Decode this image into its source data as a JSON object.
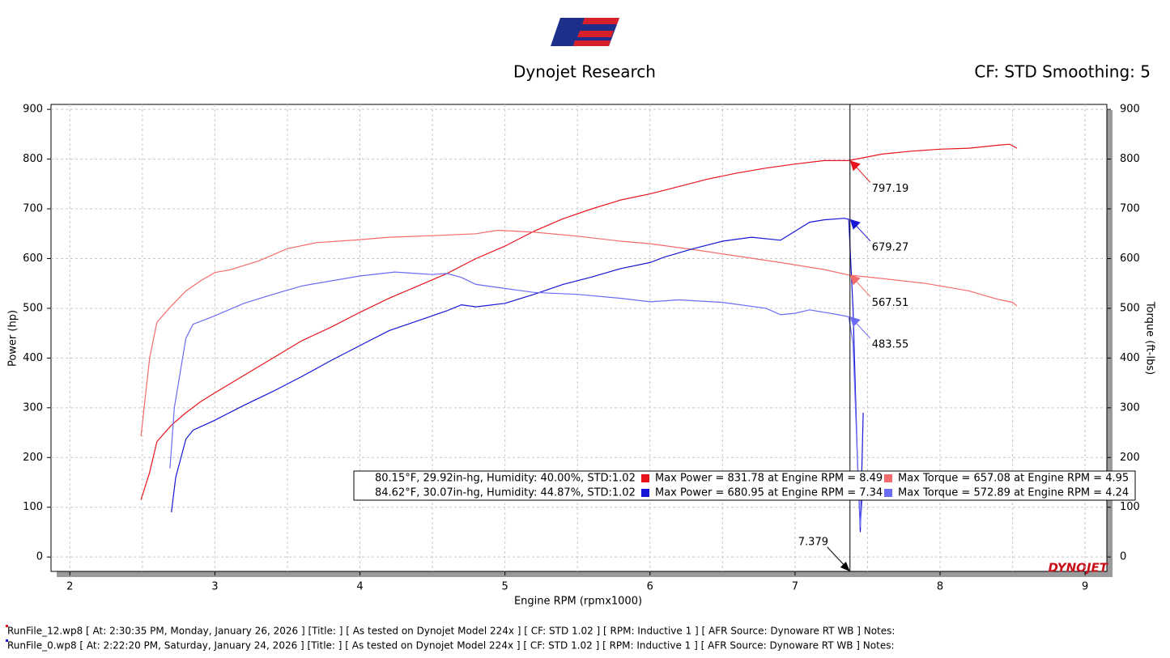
{
  "chart_data": {
    "type": "line",
    "title": "Dynojet Research",
    "subtitle": "CF: STD Smoothing: 5",
    "x_label": "Engine RPM (rpmx1000)",
    "y_label": "Power (hp)",
    "y2_label": "Torque (ft-lbs)",
    "brand": "DYNOJET",
    "xlim": [
      1.87,
      9.15
    ],
    "ylim": [
      -29,
      910
    ],
    "y2lim": [
      -29,
      910
    ],
    "xticks": [
      2,
      3,
      4,
      5,
      6,
      7,
      8,
      9
    ],
    "x_minor_ticks": [
      2.5,
      3.5,
      4.5,
      5.5,
      6.5,
      7.5,
      8.5
    ],
    "yticks": [
      0,
      100,
      200,
      300,
      400,
      500,
      600,
      700,
      800,
      900
    ],
    "y2ticks": [
      0,
      100,
      200,
      300,
      400,
      500,
      600,
      700,
      800,
      900
    ],
    "grid": true,
    "series": [
      {
        "name": "RunFile_12 Power",
        "color": "#e8141b",
        "x": [
          2.49,
          2.55,
          2.6,
          2.7,
          2.8,
          2.9,
          3.0,
          3.2,
          3.4,
          3.6,
          3.8,
          4.0,
          4.2,
          4.4,
          4.6,
          4.8,
          5.0,
          5.2,
          5.4,
          5.6,
          5.8,
          6.0,
          6.2,
          6.4,
          6.6,
          6.8,
          7.0,
          7.2,
          7.37,
          7.6,
          7.8,
          8.0,
          8.2,
          8.4,
          8.48,
          8.53
        ],
        "values": [
          115,
          170,
          232,
          265,
          290,
          312,
          330,
          365,
          400,
          435,
          462,
          492,
          520,
          545,
          570,
          600,
          625,
          655,
          680,
          700,
          718,
          730,
          745,
          760,
          772,
          782,
          790,
          797,
          797,
          810,
          816,
          820,
          822,
          828,
          830,
          822
        ]
      },
      {
        "name": "RunFile_12 Torque",
        "color": "#f46b6b",
        "axis": "y2",
        "x": [
          2.49,
          2.55,
          2.6,
          2.7,
          2.8,
          2.9,
          3.0,
          3.1,
          3.3,
          3.5,
          3.7,
          4.0,
          4.2,
          4.5,
          4.8,
          4.95,
          5.2,
          5.5,
          5.8,
          6.0,
          6.3,
          6.6,
          6.9,
          7.2,
          7.37,
          7.6,
          7.9,
          8.2,
          8.4,
          8.5,
          8.53
        ],
        "values": [
          243,
          400,
          472,
          505,
          535,
          555,
          572,
          577,
          595,
          620,
          632,
          638,
          643,
          646,
          650,
          657,
          653,
          645,
          635,
          630,
          618,
          605,
          592,
          578,
          567,
          560,
          550,
          535,
          518,
          512,
          505
        ]
      },
      {
        "name": "RunFile_0 Power",
        "color": "#1616d6",
        "x": [
          2.7,
          2.73,
          2.8,
          2.85,
          3.0,
          3.2,
          3.4,
          3.6,
          3.8,
          4.0,
          4.2,
          4.4,
          4.6,
          4.7,
          4.8,
          5.0,
          5.2,
          5.4,
          5.6,
          5.8,
          6.0,
          6.1,
          6.3,
          6.5,
          6.7,
          6.9,
          7.0,
          7.1,
          7.2,
          7.34,
          7.37,
          7.4,
          7.43,
          7.45,
          7.47
        ],
        "values": [
          90,
          160,
          237,
          255,
          275,
          305,
          333,
          363,
          395,
          425,
          455,
          475,
          495,
          507,
          503,
          510,
          528,
          548,
          563,
          580,
          592,
          603,
          620,
          635,
          643,
          637,
          655,
          673,
          678,
          681,
          679,
          500,
          200,
          50,
          290
        ]
      },
      {
        "name": "RunFile_0 Torque",
        "color": "#6b6bf4",
        "axis": "y2",
        "x": [
          2.69,
          2.72,
          2.8,
          2.85,
          3.0,
          3.2,
          3.4,
          3.6,
          3.8,
          4.0,
          4.24,
          4.5,
          4.6,
          4.7,
          4.8,
          5.0,
          5.2,
          5.5,
          5.8,
          6.0,
          6.2,
          6.5,
          6.8,
          6.9,
          7.0,
          7.1,
          7.3,
          7.37,
          7.4,
          7.43,
          7.45,
          7.47
        ],
        "values": [
          178,
          300,
          440,
          468,
          485,
          510,
          528,
          545,
          555,
          565,
          573,
          568,
          570,
          562,
          548,
          540,
          532,
          528,
          520,
          513,
          517,
          512,
          500,
          487,
          490,
          497,
          487,
          483,
          430,
          200,
          60,
          150
        ]
      }
    ],
    "cursor_x": 7.379,
    "annotations": [
      {
        "value": 797.19,
        "color": "#e8141b"
      },
      {
        "value": 679.27,
        "color": "#1616d6"
      },
      {
        "value": 567.51,
        "color": "#f46b6b"
      },
      {
        "value": 483.55,
        "color": "#6b6bf4"
      }
    ],
    "legend_rows": [
      {
        "conditions": "80.15°F, 29.92in-hg, Humidity: 40.00%, STD:1.02",
        "power": "Max Power = 831.78 at Engine RPM = 8.49",
        "torque": "Max Torque = 657.08 at Engine RPM = 4.95"
      },
      {
        "conditions": "84.62°F, 30.07in-hg, Humidity: 44.87%, STD:1.02",
        "power": "Max Power = 680.95 at Engine RPM = 7.34",
        "torque": "Max Torque = 572.89 at Engine RPM = 4.24"
      }
    ],
    "footer": [
      "RunFile_12.wp8 [ At: 2:30:35 PM, Monday, January 26, 2026 ] [Title: ]  [ As tested on Dynojet Model 224x ] [ CF: STD 1.02 ] [ RPM: Inductive 1 ] [ AFR Source: Dynoware RT WB ] Notes:",
      "RunFile_0.wp8 [ At: 2:22:20 PM, Saturday, January 24, 2026 ] [Title: ]  [ As tested on Dynojet Model 224x ] [ CF: STD 1.02 ] [ RPM: Inductive 1 ] [ AFR Source: Dynoware RT WB ] Notes:"
    ]
  }
}
